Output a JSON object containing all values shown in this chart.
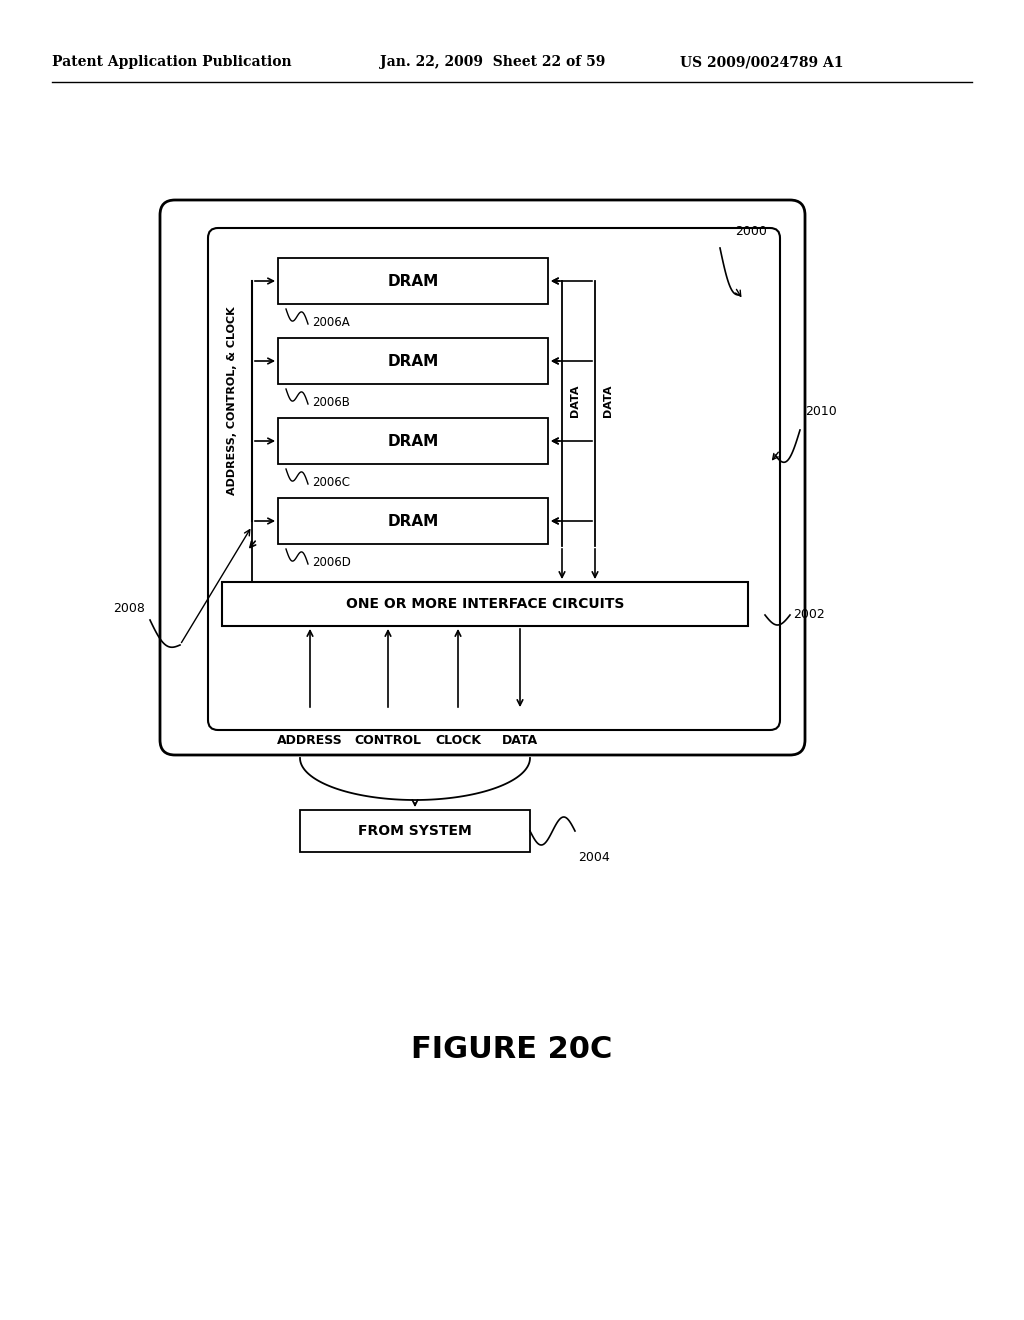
{
  "bg_color": "#ffffff",
  "header_left": "Patent Application Publication",
  "header_mid": "Jan. 22, 2009  Sheet 22 of 59",
  "header_right": "US 2009/0024789 A1",
  "figure_label": "FIGURE 20C",
  "dram_refs": [
    "2006A",
    "2006B",
    "2006C",
    "2006D"
  ],
  "ref_2000": "2000",
  "ref_2010": "2010",
  "ref_2002": "2002",
  "ref_2008": "2008",
  "ref_2004": "2004",
  "labels_below": [
    "ADDRESS",
    "CONTROL",
    "CLOCK",
    "DATA"
  ]
}
